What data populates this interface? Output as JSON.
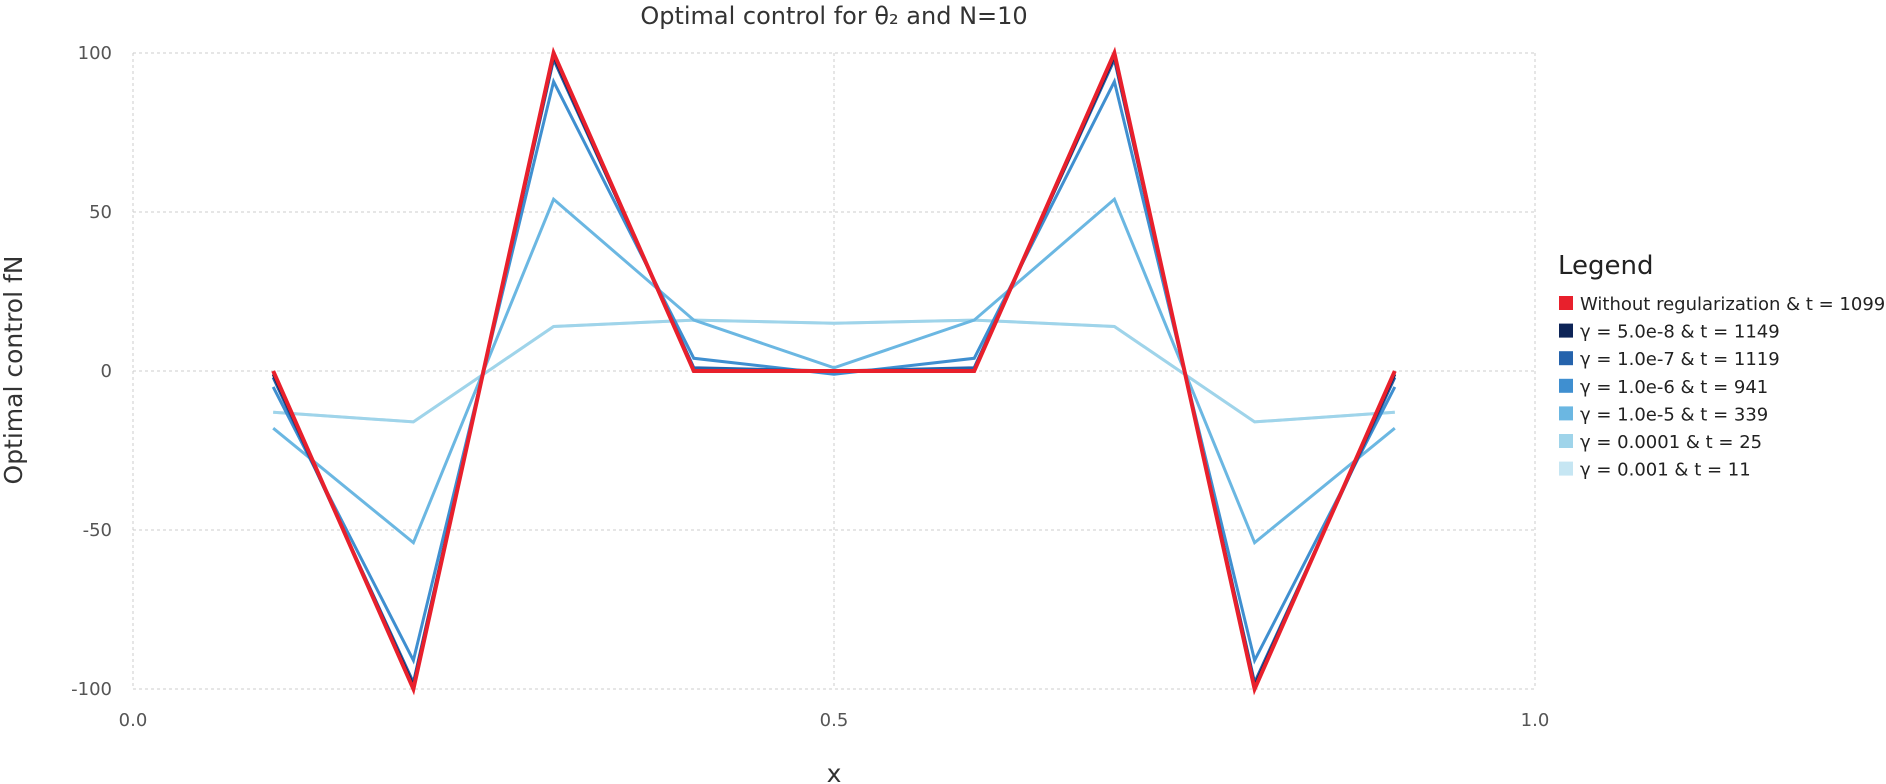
{
  "chart_data": {
    "type": "line",
    "title": "Optimal control for θ₂ and N=10",
    "xlabel": "x",
    "ylabel": "Optimal control fN",
    "xlim": [
      0.0,
      1.0
    ],
    "ylim": [
      -100,
      100
    ],
    "xticks": [
      "0.0",
      "0.5",
      "1.0"
    ],
    "xtick_values": [
      0.0,
      0.5,
      1.0
    ],
    "yticks": [
      "100",
      "50",
      "0",
      "-50",
      "-100"
    ],
    "ytick_values": [
      100,
      50,
      0,
      -50,
      -100
    ],
    "grid": true,
    "legend_title": "Legend",
    "legend_position": "right",
    "x": [
      0.1,
      0.2,
      0.3,
      0.4,
      0.5,
      0.6,
      0.7,
      0.8,
      0.9
    ],
    "series": [
      {
        "name": "γ = 0.001 & t = 11",
        "color": "#c6e6f3",
        "values": [
          -13,
          -16,
          14,
          16,
          15,
          16,
          14,
          -16,
          -13
        ]
      },
      {
        "name": "γ = 0.0001 & t = 25",
        "color": "#9fd4ea",
        "values": [
          -13,
          -16,
          14,
          16,
          15,
          16,
          14,
          -16,
          -13
        ]
      },
      {
        "name": "γ = 1.0e-5 & t = 339",
        "color": "#6bb7e2",
        "values": [
          -18,
          -54,
          54,
          16,
          1,
          16,
          54,
          -54,
          -18
        ]
      },
      {
        "name": "γ = 1.0e-6 & t = 941",
        "color": "#3f8fd0",
        "values": [
          -5,
          -91,
          91,
          4,
          -1,
          4,
          91,
          -91,
          -5
        ]
      },
      {
        "name": "γ = 1.0e-7 & t = 1119",
        "color": "#2563ac",
        "values": [
          -2,
          -98,
          98,
          1,
          0,
          1,
          98,
          -98,
          -2
        ]
      },
      {
        "name": "γ = 5.0e-8 & t = 1149",
        "color": "#0d2457",
        "values": [
          -1,
          -99,
          99,
          0,
          0,
          0,
          99,
          -99,
          -1
        ]
      },
      {
        "name": "Without regularization & t = 1099",
        "color": "#e8202c",
        "values": [
          0,
          -100,
          100,
          0,
          0,
          0,
          100,
          -100,
          0
        ]
      }
    ],
    "legend_order": [
      6,
      5,
      4,
      3,
      2,
      1,
      0
    ]
  }
}
